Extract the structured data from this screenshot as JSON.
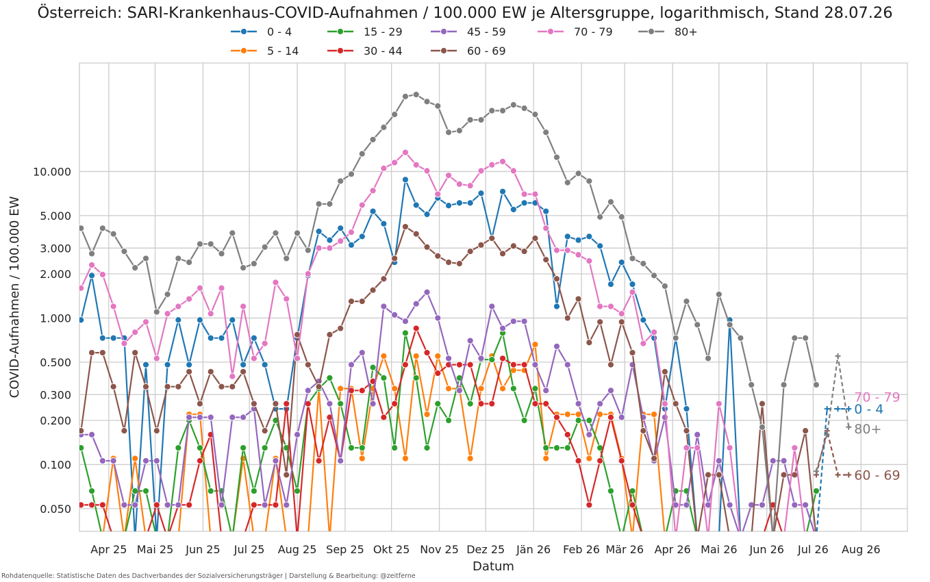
{
  "chart_data": {
    "type": "line",
    "title": "Österreich: SARI-Krankenhaus-COVID-Aufnahmen / 100.000 EW je Altersgruppe, logarithmisch, Stand 28.07.26",
    "xlabel": "Datum",
    "ylabel": "COVID-Aufnahmen / 100.000 EW",
    "yscale": "log",
    "ylim": [
      0.035,
      55
    ],
    "xlim": [
      "2025-03-13",
      "2026-08-31"
    ],
    "grid": true,
    "legend_position": "top-center",
    "yticks": [
      {
        "value": 0.05,
        "label": "0.050"
      },
      {
        "value": 0.1,
        "label": "0.100"
      },
      {
        "value": 0.2,
        "label": "0.200"
      },
      {
        "value": 0.3,
        "label": "0.300"
      },
      {
        "value": 0.5,
        "label": "0.500"
      },
      {
        "value": 1,
        "label": "1.000"
      },
      {
        "value": 2,
        "label": "2.000"
      },
      {
        "value": 3,
        "label": "3.000"
      },
      {
        "value": 5,
        "label": "5.000"
      },
      {
        "value": 10,
        "label": "10.000"
      }
    ],
    "xticks": [
      {
        "date": "2025-04-01",
        "label": "Apr 25"
      },
      {
        "date": "2025-05-01",
        "label": "Mai 25"
      },
      {
        "date": "2025-06-01",
        "label": "Jun 25"
      },
      {
        "date": "2025-07-01",
        "label": "Jul 25"
      },
      {
        "date": "2025-08-01",
        "label": "Aug 25"
      },
      {
        "date": "2025-09-01",
        "label": "Sep 25"
      },
      {
        "date": "2025-10-01",
        "label": "Okt 25"
      },
      {
        "date": "2025-11-01",
        "label": "Nov 25"
      },
      {
        "date": "2025-12-01",
        "label": "Dez 25"
      },
      {
        "date": "2026-01-01",
        "label": "Jän 26"
      },
      {
        "date": "2026-02-01",
        "label": "Feb 26"
      },
      {
        "date": "2026-03-01",
        "label": "Mär 26"
      },
      {
        "date": "2026-04-01",
        "label": "Apr 26"
      },
      {
        "date": "2026-05-01",
        "label": "Mai 26"
      },
      {
        "date": "2026-06-01",
        "label": "Jun 26"
      },
      {
        "date": "2026-07-01",
        "label": "Jul 26"
      },
      {
        "date": "2026-08-01",
        "label": "Aug 26"
      }
    ],
    "dates": [
      "2025-03-14",
      "2025-03-21",
      "2025-03-28",
      "2025-04-04",
      "2025-04-11",
      "2025-04-18",
      "2025-04-25",
      "2025-05-02",
      "2025-05-09",
      "2025-05-16",
      "2025-05-23",
      "2025-05-30",
      "2025-06-06",
      "2025-06-13",
      "2025-06-20",
      "2025-06-27",
      "2025-07-04",
      "2025-07-11",
      "2025-07-18",
      "2025-07-25",
      "2025-08-01",
      "2025-08-08",
      "2025-08-15",
      "2025-08-22",
      "2025-08-29",
      "2025-09-05",
      "2025-09-12",
      "2025-09-19",
      "2025-09-26",
      "2025-10-03",
      "2025-10-10",
      "2025-10-17",
      "2025-10-24",
      "2025-10-31",
      "2025-11-07",
      "2025-11-14",
      "2025-11-21",
      "2025-11-28",
      "2025-12-05",
      "2025-12-12",
      "2025-12-19",
      "2025-12-26",
      "2026-01-02",
      "2026-01-09",
      "2026-01-16",
      "2026-01-23",
      "2026-01-30",
      "2026-02-06",
      "2026-02-13",
      "2026-02-20",
      "2026-02-27",
      "2026-03-06",
      "2026-03-13",
      "2026-03-20",
      "2026-03-27",
      "2026-04-03",
      "2026-04-10",
      "2026-04-17",
      "2026-04-24",
      "2026-05-01",
      "2026-05-08",
      "2026-05-15",
      "2026-05-22",
      "2026-05-29",
      "2026-06-05",
      "2026-06-12",
      "2026-06-19",
      "2026-06-26",
      "2026-07-03"
    ],
    "nowcast_dates": [
      "2026-07-03",
      "2026-07-10",
      "2026-07-17",
      "2026-07-24"
    ],
    "series": [
      {
        "name": "0 - 4",
        "color": "#1f77b4",
        "values": [
          0.97,
          1.95,
          0.73,
          0.73,
          0.73,
          0,
          0.48,
          0,
          0.48,
          0.97,
          0.48,
          0.97,
          0.73,
          0.73,
          0.97,
          0.48,
          0.73,
          0.48,
          0.24,
          0.24,
          0.73,
          1.95,
          3.9,
          3.4,
          4.1,
          3.15,
          3.6,
          5.35,
          4.4,
          2.4,
          8.8,
          5.9,
          5.1,
          6.6,
          5.85,
          6.1,
          6.1,
          7.1,
          3.5,
          7.3,
          5.5,
          6.1,
          6.1,
          5.35,
          1.2,
          3.6,
          3.4,
          3.6,
          3.1,
          1.7,
          2.4,
          1.7,
          0.97,
          0.73,
          0.24,
          0.73,
          0.24,
          0,
          0,
          0,
          0.97,
          0,
          0,
          0,
          0,
          0,
          0,
          0,
          0
        ],
        "nowcast": [
          0,
          0.24,
          0.24,
          0.24
        ],
        "end_label": "0 - 4",
        "end_value": 0.24
      },
      {
        "name": "5 - 14",
        "color": "#ff7f0e",
        "values": [
          0,
          0,
          0,
          0.11,
          0,
          0.11,
          0,
          0,
          0,
          0,
          0.22,
          0.22,
          0,
          0,
          0,
          0.11,
          0,
          0,
          0.11,
          0,
          0,
          0,
          0.33,
          0,
          0.33,
          0.33,
          0.11,
          0.33,
          0.55,
          0.33,
          0.11,
          0.55,
          0.22,
          0.55,
          0.33,
          0.33,
          0.11,
          0.33,
          0.55,
          0.33,
          0.44,
          0.44,
          0.66,
          0.11,
          0.22,
          0.22,
          0.22,
          0.11,
          0.22,
          0.22,
          0.11,
          0,
          0.22,
          0.22,
          0,
          0,
          0,
          0,
          0,
          0,
          0,
          0,
          0,
          0,
          0,
          0,
          0,
          0,
          0
        ],
        "nowcast": null,
        "end_label": null,
        "end_value": null
      },
      {
        "name": "15 - 29",
        "color": "#2ca02c",
        "values": [
          0.13,
          0.066,
          0,
          0,
          0,
          0.066,
          0.066,
          0,
          0,
          0.13,
          0.2,
          0.13,
          0.066,
          0.066,
          0,
          0.13,
          0.066,
          0.13,
          0.2,
          0.13,
          0.066,
          0.26,
          0.33,
          0.39,
          0.26,
          0.13,
          0.13,
          0.46,
          0.39,
          0.13,
          0.79,
          0.39,
          0.13,
          0.26,
          0.2,
          0.39,
          0.26,
          0.52,
          0.52,
          0.79,
          0.33,
          0.2,
          0.33,
          0.13,
          0.13,
          0.13,
          0.2,
          0.2,
          0.13,
          0.066,
          0,
          0.066,
          0,
          0,
          0,
          0.066,
          0.066,
          0,
          0,
          0,
          0,
          0,
          0,
          0,
          0,
          0,
          0,
          0,
          0.066
        ],
        "nowcast": null,
        "end_label": null,
        "end_value": null
      },
      {
        "name": "30 - 44",
        "color": "#d62728",
        "values": [
          0.053,
          0.053,
          0.053,
          0,
          0,
          0,
          0,
          0.053,
          0,
          0.053,
          0.053,
          0.106,
          0.16,
          0,
          0,
          0,
          0.053,
          0.053,
          0.053,
          0.26,
          0,
          0.26,
          0.106,
          0.21,
          0.106,
          0.32,
          0.32,
          0.37,
          0.21,
          0.26,
          0.48,
          0.85,
          0.58,
          0.42,
          0.48,
          0.48,
          0.48,
          0.26,
          0.26,
          0.53,
          0.48,
          0.48,
          0.26,
          0.26,
          0.21,
          0.16,
          0.106,
          0.053,
          0.106,
          0.21,
          0.106,
          0.053,
          0,
          0,
          0,
          0,
          0,
          0,
          0,
          0,
          0,
          0,
          0,
          0,
          0.053,
          0,
          0,
          0,
          0
        ],
        "nowcast": null,
        "end_label": null,
        "end_value": null
      },
      {
        "name": "45 - 59",
        "color": "#9467bd",
        "values": [
          0.16,
          0.16,
          0.106,
          0.106,
          0.053,
          0.053,
          0.106,
          0.106,
          0.053,
          0.053,
          0.21,
          0.21,
          0.21,
          0.053,
          0.21,
          0.21,
          0.24,
          0.053,
          0.106,
          0.053,
          0.16,
          0.32,
          0.37,
          0.26,
          0.106,
          0.48,
          0.58,
          0.26,
          1.2,
          1.05,
          0.95,
          1.25,
          1.5,
          1.0,
          0.53,
          0.32,
          0.7,
          0.53,
          1.2,
          0.85,
          0.95,
          0.95,
          0.48,
          0.32,
          0.64,
          0.48,
          0.26,
          0.16,
          0.26,
          0.32,
          0.21,
          0.48,
          0.21,
          0.106,
          0.21,
          0.053,
          0.053,
          0.16,
          0.053,
          0.106,
          0.053,
          0,
          0.053,
          0.053,
          0.106,
          0.106,
          0.053,
          0.053,
          0
        ],
        "nowcast": null,
        "end_label": null,
        "end_value": null
      },
      {
        "name": "60 - 69",
        "color": "#8c564b",
        "values": [
          0.17,
          0.58,
          0.58,
          0.34,
          0.17,
          0.58,
          0.34,
          0.17,
          0.34,
          0.34,
          0.43,
          0.26,
          0.43,
          0.34,
          0.34,
          0.43,
          0.26,
          0.17,
          0.26,
          0.085,
          0.77,
          0.48,
          0.34,
          0.77,
          0.85,
          1.3,
          1.3,
          1.55,
          1.85,
          2.55,
          4.2,
          3.75,
          3.05,
          2.65,
          2.4,
          2.35,
          2.85,
          3.15,
          3.5,
          2.75,
          3.1,
          2.85,
          3.5,
          2.5,
          1.85,
          1.0,
          1.35,
          0.68,
          0.94,
          0.48,
          0.94,
          0.58,
          0.17,
          0.11,
          0.43,
          0.26,
          0.17,
          0,
          0.085,
          0.085,
          0,
          0,
          0,
          0.26,
          0,
          0.085,
          0.085,
          0.17,
          0
        ],
        "nowcast": [
          0.085,
          0.17,
          0.085,
          0.085
        ],
        "end_label": "60 - 69",
        "end_value": 0.085
      },
      {
        "name": "70 - 79",
        "color": "#e377c2",
        "values": [
          1.6,
          2.3,
          1.98,
          1.2,
          0.67,
          0.8,
          0.94,
          0.53,
          1.07,
          1.2,
          1.35,
          1.6,
          1.07,
          1.6,
          0.4,
          1.2,
          0.53,
          0.67,
          1.75,
          1.35,
          0.53,
          2.0,
          3.0,
          3.0,
          3.35,
          3.85,
          5.9,
          7.4,
          10.5,
          11.5,
          13.5,
          11.1,
          10.1,
          7.0,
          9.4,
          8.2,
          8.0,
          10.1,
          11.1,
          11.7,
          10.1,
          7.0,
          7.0,
          4.1,
          2.9,
          2.9,
          2.7,
          2.45,
          1.2,
          1.2,
          1.07,
          1.5,
          0.67,
          0.8,
          0.26,
          0,
          0.13,
          0.13,
          0,
          0.26,
          0.13,
          0,
          0,
          0,
          0,
          0,
          0.13,
          0,
          0
        ],
        "nowcast": null,
        "end_label": "70 - 79",
        "end_value": 0.26
      },
      {
        "name": "80+",
        "color": "#7f7f7f",
        "values": [
          4.1,
          2.75,
          4.1,
          3.75,
          2.85,
          2.2,
          2.55,
          1.1,
          1.45,
          2.55,
          2.4,
          3.2,
          3.2,
          2.75,
          3.8,
          2.2,
          2.35,
          3.05,
          3.8,
          2.55,
          3.8,
          2.9,
          6.0,
          6.0,
          8.6,
          9.6,
          13.2,
          16.5,
          20.0,
          24.5,
          32.5,
          33.5,
          30.0,
          28.0,
          18.5,
          19.0,
          22.5,
          22.5,
          26.0,
          26.0,
          28.5,
          27.0,
          24.5,
          18.5,
          12.5,
          8.4,
          9.7,
          8.6,
          4.9,
          6.2,
          4.9,
          2.55,
          2.35,
          1.95,
          1.65,
          0.73,
          1.3,
          0.9,
          0.53,
          1.45,
          0.9,
          0.73,
          0.35,
          0.18,
          0,
          0.35,
          0.73,
          0.73,
          0.35
        ],
        "nowcast": [
          0.09,
          0.16,
          0.55,
          0.18
        ],
        "end_label": "80+",
        "end_value": 0.18
      }
    ]
  },
  "source_note": "Rohdatenquelle: Statistische Daten des Dachverbandes der Sozialversicherungsträger | Darstellung & Bearbeitung: @zeitferne"
}
